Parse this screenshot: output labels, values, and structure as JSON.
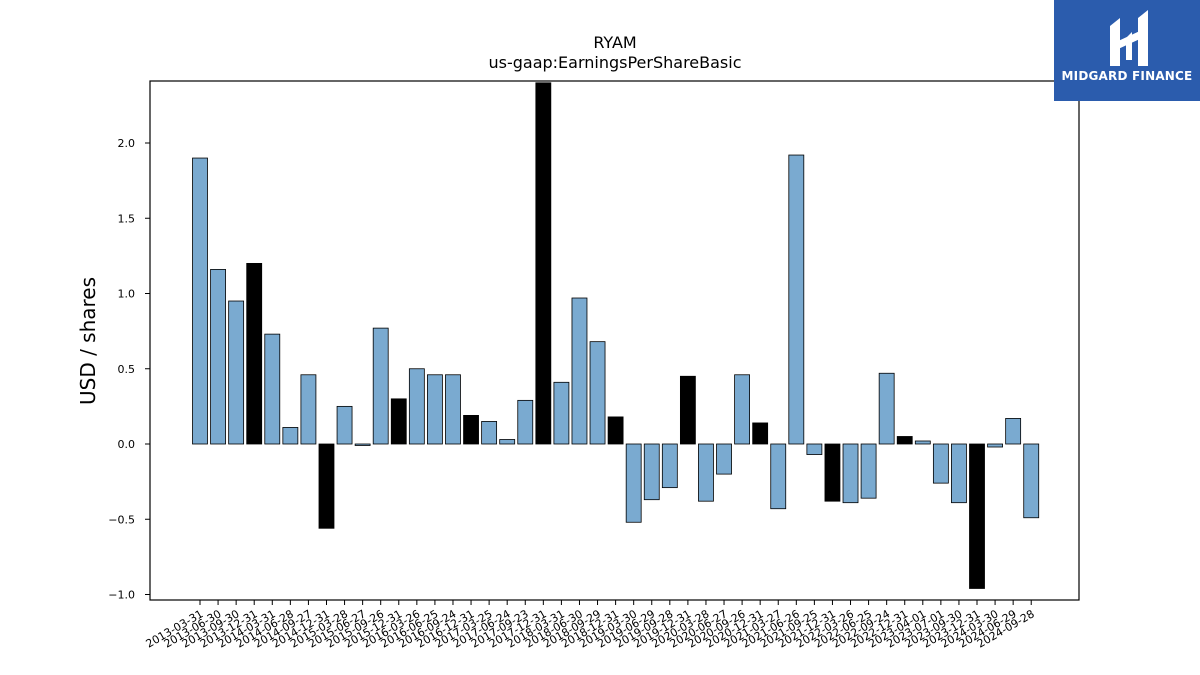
{
  "chart_data": {
    "type": "bar",
    "title": "RYAM",
    "subtitle": "us-gaap:EarningsPerShareBasic",
    "ylabel": "USD / shares",
    "xlabel": "",
    "ylim": [
      -1.05,
      2.4
    ],
    "yticks": [
      -1.0,
      -0.5,
      0.0,
      0.5,
      1.0,
      1.5,
      2.0
    ],
    "ytick_labels": [
      "−1.0",
      "−0.5",
      "0.0",
      "0.5",
      "1.0",
      "1.5",
      "2.0"
    ],
    "grid": false,
    "colors": {
      "quarter": "#7aaad0",
      "annual": "#000000",
      "edge": "#000000"
    },
    "categories": [
      "2013-03-31",
      "2013-06-30",
      "2013-09-30",
      "2013-12-31",
      "2014-03-31",
      "2014-06-28",
      "2014-09-27",
      "2014-12-31",
      "2015-03-28",
      "2015-06-27",
      "2015-09-26",
      "2015-12-31",
      "2016-03-26",
      "2016-06-25",
      "2016-09-24",
      "2016-12-31",
      "2017-03-25",
      "2017-06-24",
      "2017-09-23",
      "2017-12-31",
      "2018-03-31",
      "2018-06-30",
      "2018-09-29",
      "2018-12-31",
      "2019-03-30",
      "2019-06-29",
      "2019-09-28",
      "2019-12-31",
      "2020-03-28",
      "2020-06-27",
      "2020-09-26",
      "2020-12-31",
      "2021-03-27",
      "2021-06-26",
      "2021-09-25",
      "2021-12-31",
      "2022-03-26",
      "2022-06-25",
      "2022-09-24",
      "2022-12-31",
      "2023-04-01",
      "2023-07-01",
      "2023-09-30",
      "2023-12-31",
      "2024-03-30",
      "2024-06-29",
      "2024-09-28"
    ],
    "values": [
      1.9,
      1.16,
      0.95,
      1.2,
      0.73,
      0.11,
      0.46,
      -0.56,
      0.25,
      -0.01,
      0.77,
      0.3,
      0.5,
      0.46,
      0.46,
      0.19,
      0.15,
      0.03,
      0.29,
      2.4,
      0.41,
      0.97,
      0.68,
      0.18,
      -0.52,
      -0.37,
      -0.29,
      0.45,
      -0.38,
      -0.2,
      0.46,
      0.14,
      -0.43,
      1.92,
      -0.07,
      -0.38,
      -0.39,
      -0.36,
      0.47,
      0.05,
      0.02,
      -0.26,
      -0.39,
      -0.96,
      -0.02,
      0.17,
      -0.49
    ],
    "annual": [
      false,
      false,
      false,
      true,
      false,
      false,
      false,
      true,
      false,
      false,
      false,
      true,
      false,
      false,
      false,
      true,
      false,
      false,
      false,
      true,
      false,
      false,
      false,
      true,
      false,
      false,
      false,
      true,
      false,
      false,
      false,
      true,
      false,
      false,
      false,
      true,
      false,
      false,
      false,
      true,
      false,
      false,
      false,
      true,
      false,
      false,
      false
    ]
  },
  "logo": {
    "text": "MIDGARD FINANCE",
    "icon": "midgard-logo-icon",
    "background": "#2b5cad"
  }
}
